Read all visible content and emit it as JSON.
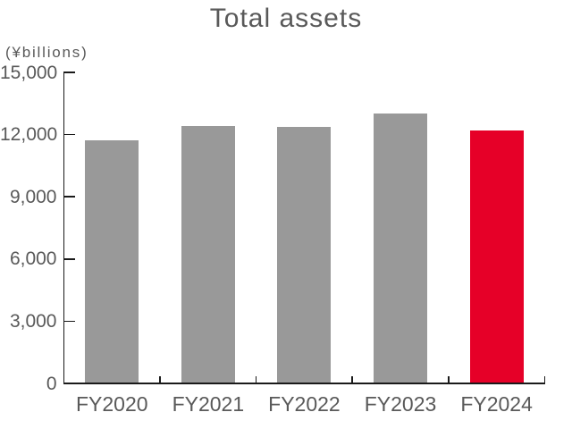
{
  "chart_data": {
    "type": "bar",
    "title": "Total assets",
    "unit_label": "(¥billions)",
    "categories": [
      "FY2020",
      "FY2021",
      "FY2022",
      "FY2023",
      "FY2024"
    ],
    "values": [
      11715,
      12410,
      12370,
      13025,
      12200
    ],
    "ylim": [
      0,
      15000
    ],
    "yticks": [
      0,
      3000,
      6000,
      9000,
      12000,
      15000
    ],
    "ytick_labels": [
      "0",
      "3,000",
      "6,000",
      "9,000",
      "12,000",
      "15,000"
    ],
    "xlabel": "",
    "ylabel": "(¥billions)",
    "grid": false,
    "legend": false,
    "bar_color": "#999999",
    "highlight_bar_color": "#e60028",
    "highlight_index": 4,
    "axis_color": "#1a1a1a",
    "text_color": "#595959"
  }
}
